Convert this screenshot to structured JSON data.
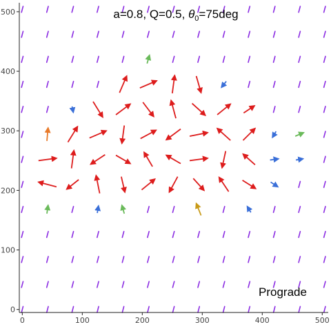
{
  "chart_data": {
    "type": "vector-field",
    "title_parts": [
      "a=0.8, Q=0.5, ",
      "θ",
      "0",
      "=75deg"
    ],
    "corner_label": "Prograde",
    "xlim": [
      -5,
      510
    ],
    "ylim": [
      -5,
      515
    ],
    "x_ticks": [
      0,
      100,
      200,
      300,
      400,
      500
    ],
    "y_ticks": [
      0,
      100,
      200,
      300,
      400,
      500
    ],
    "grid_x": [
      0,
      42,
      84,
      126,
      168,
      210,
      252,
      294,
      336,
      378,
      420,
      462,
      504
    ],
    "grid_y": [
      0,
      42,
      84,
      126,
      168,
      210,
      252,
      294,
      336,
      378,
      420,
      462,
      504
    ],
    "colors": {
      "strong": "#dd1c1c",
      "weak": "#8a2be2",
      "blue": "#3a6fd8",
      "green": "#6aba5a",
      "orange": "#e87a2a",
      "amber": "#c89a18"
    },
    "background_dash_angle_deg": 75,
    "vectors": [
      {
        "x": 42,
        "y": 210,
        "dx": -30,
        "dy": 8,
        "c": "strong"
      },
      {
        "x": 84,
        "y": 210,
        "dx": -20,
        "dy": -16,
        "c": "strong"
      },
      {
        "x": 126,
        "y": 210,
        "dx": -6,
        "dy": 30,
        "c": "strong"
      },
      {
        "x": 168,
        "y": 210,
        "dx": 6,
        "dy": -26,
        "c": "strong"
      },
      {
        "x": 210,
        "y": 210,
        "dx": 22,
        "dy": 18,
        "c": "strong"
      },
      {
        "x": 252,
        "y": 210,
        "dx": -14,
        "dy": -26,
        "c": "strong"
      },
      {
        "x": 294,
        "y": 210,
        "dx": 18,
        "dy": -20,
        "c": "strong"
      },
      {
        "x": 336,
        "y": 210,
        "dx": -16,
        "dy": 24,
        "c": "strong"
      },
      {
        "x": 378,
        "y": 210,
        "dx": 22,
        "dy": -14,
        "c": "strong"
      },
      {
        "x": 420,
        "y": 210,
        "dx": 12,
        "dy": -8,
        "c": "blue"
      },
      {
        "x": 42,
        "y": 252,
        "dx": 30,
        "dy": 4,
        "c": "strong"
      },
      {
        "x": 84,
        "y": 252,
        "dx": 4,
        "dy": 30,
        "c": "strong"
      },
      {
        "x": 126,
        "y": 252,
        "dx": -24,
        "dy": -16,
        "c": "strong"
      },
      {
        "x": 168,
        "y": 252,
        "dx": 24,
        "dy": -14,
        "c": "strong"
      },
      {
        "x": 210,
        "y": 252,
        "dx": -14,
        "dy": 24,
        "c": "strong"
      },
      {
        "x": 252,
        "y": 252,
        "dx": -24,
        "dy": 14,
        "c": "strong"
      },
      {
        "x": 294,
        "y": 252,
        "dx": 30,
        "dy": 4,
        "c": "strong"
      },
      {
        "x": 336,
        "y": 252,
        "dx": -6,
        "dy": -28,
        "c": "strong"
      },
      {
        "x": 378,
        "y": 252,
        "dx": -20,
        "dy": 18,
        "c": "strong"
      },
      {
        "x": 420,
        "y": 252,
        "dx": 14,
        "dy": 2,
        "c": "blue"
      },
      {
        "x": 84,
        "y": 294,
        "dx": 16,
        "dy": 26,
        "c": "strong"
      },
      {
        "x": 126,
        "y": 294,
        "dx": 28,
        "dy": 12,
        "c": "strong"
      },
      {
        "x": 168,
        "y": 294,
        "dx": -4,
        "dy": -30,
        "c": "strong"
      },
      {
        "x": 210,
        "y": 294,
        "dx": 26,
        "dy": 14,
        "c": "strong"
      },
      {
        "x": 252,
        "y": 294,
        "dx": -24,
        "dy": -18,
        "c": "strong"
      },
      {
        "x": 294,
        "y": 294,
        "dx": 30,
        "dy": 6,
        "c": "strong"
      },
      {
        "x": 336,
        "y": 294,
        "dx": -22,
        "dy": 20,
        "c": "strong"
      },
      {
        "x": 378,
        "y": 294,
        "dx": 20,
        "dy": 20,
        "c": "strong"
      },
      {
        "x": 420,
        "y": 294,
        "dx": -6,
        "dy": -10,
        "c": "blue"
      },
      {
        "x": 126,
        "y": 336,
        "dx": 16,
        "dy": -26,
        "c": "strong"
      },
      {
        "x": 168,
        "y": 336,
        "dx": 24,
        "dy": 18,
        "c": "strong"
      },
      {
        "x": 210,
        "y": 336,
        "dx": 18,
        "dy": -24,
        "c": "strong"
      },
      {
        "x": 252,
        "y": 336,
        "dx": -8,
        "dy": 30,
        "c": "strong"
      },
      {
        "x": 294,
        "y": 336,
        "dx": 22,
        "dy": -20,
        "c": "strong"
      },
      {
        "x": 336,
        "y": 336,
        "dx": 22,
        "dy": 18,
        "c": "strong"
      },
      {
        "x": 378,
        "y": 336,
        "dx": 18,
        "dy": 12,
        "c": "strong"
      },
      {
        "x": 168,
        "y": 378,
        "dx": 12,
        "dy": 28,
        "c": "strong"
      },
      {
        "x": 210,
        "y": 378,
        "dx": 28,
        "dy": 12,
        "c": "strong"
      },
      {
        "x": 252,
        "y": 378,
        "dx": 4,
        "dy": 30,
        "c": "strong"
      },
      {
        "x": 294,
        "y": 378,
        "dx": 8,
        "dy": -28,
        "c": "strong"
      },
      {
        "x": 336,
        "y": 378,
        "dx": -8,
        "dy": -10,
        "c": "blue"
      },
      {
        "x": 42,
        "y": 168,
        "dx": 2,
        "dy": 14,
        "c": "green"
      },
      {
        "x": 378,
        "y": 168,
        "dx": -6,
        "dy": 10,
        "c": "blue"
      },
      {
        "x": 462,
        "y": 252,
        "dx": 12,
        "dy": 2,
        "c": "blue"
      },
      {
        "x": 462,
        "y": 294,
        "dx": 14,
        "dy": 6,
        "c": "green"
      },
      {
        "x": 84,
        "y": 336,
        "dx": 2,
        "dy": -10,
        "c": "blue"
      },
      {
        "x": 210,
        "y": 420,
        "dx": 4,
        "dy": 14,
        "c": "green"
      },
      {
        "x": 126,
        "y": 168,
        "dx": 2,
        "dy": 12,
        "c": "blue"
      },
      {
        "x": 168,
        "y": 168,
        "dx": -4,
        "dy": 14,
        "c": "green"
      },
      {
        "x": 294,
        "y": 168,
        "dx": -8,
        "dy": 20,
        "c": "amber"
      },
      {
        "x": 42,
        "y": 294,
        "dx": 2,
        "dy": 22,
        "c": "orange"
      }
    ]
  }
}
